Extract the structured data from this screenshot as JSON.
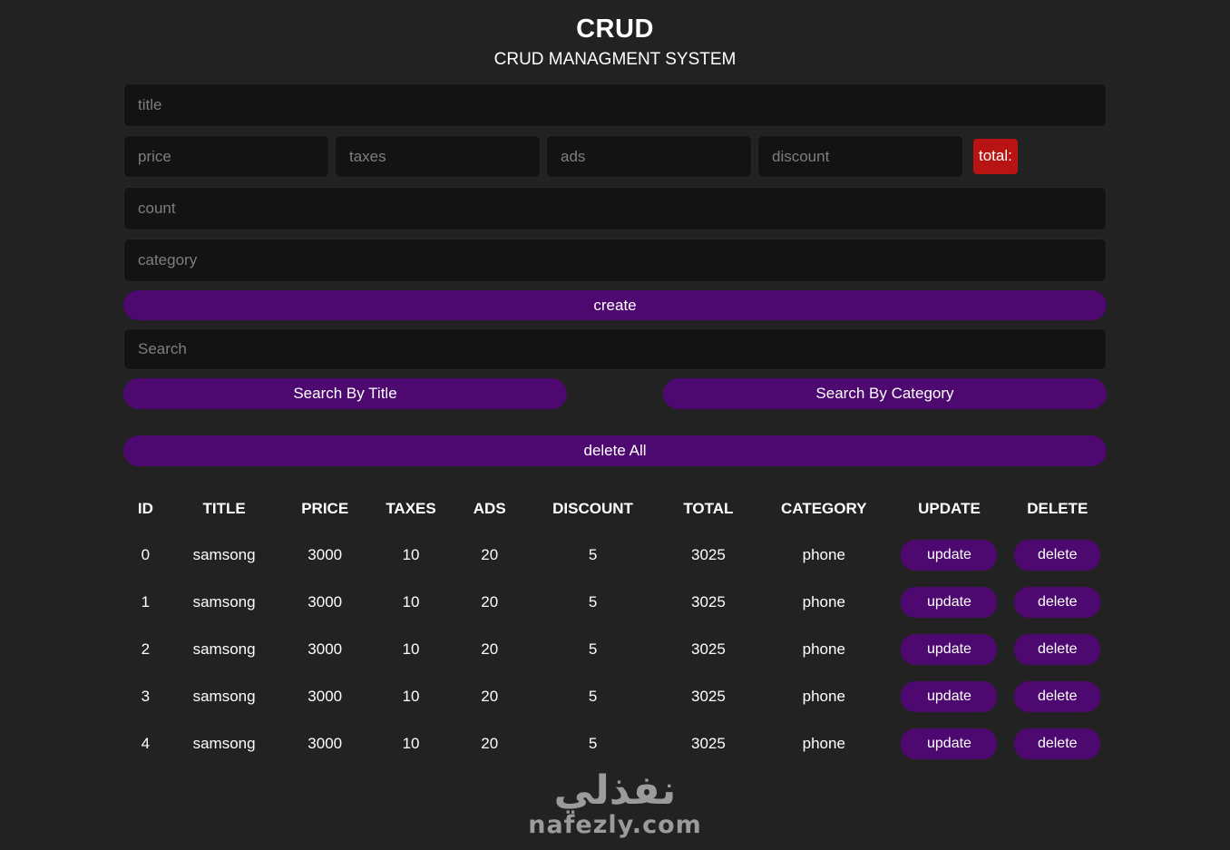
{
  "header": {
    "title": "CRUD",
    "subtitle": "CRUD MANAGMENT SYSTEM"
  },
  "form": {
    "title_placeholder": "title",
    "price_placeholder": "price",
    "taxes_placeholder": "taxes",
    "ads_placeholder": "ads",
    "discount_placeholder": "discount",
    "total_label": "total:",
    "count_placeholder": "count",
    "category_placeholder": "category",
    "create_label": "create"
  },
  "search": {
    "placeholder": "Search",
    "by_title_label": "Search By Title",
    "by_category_label": "Search By Category"
  },
  "delete_all_label": "delete All",
  "table": {
    "headers": [
      "ID",
      "TITLE",
      "PRICE",
      "TAXES",
      "ADS",
      "DISCOUNT",
      "TOTAL",
      "CATEGORY",
      "UPDATE",
      "DELETE"
    ],
    "update_label": "update",
    "delete_label": "delete",
    "rows": [
      {
        "id": "0",
        "title": "samsong",
        "price": "3000",
        "taxes": "10",
        "ads": "20",
        "discount": "5",
        "total": "3025",
        "category": "phone"
      },
      {
        "id": "1",
        "title": "samsong",
        "price": "3000",
        "taxes": "10",
        "ads": "20",
        "discount": "5",
        "total": "3025",
        "category": "phone"
      },
      {
        "id": "2",
        "title": "samsong",
        "price": "3000",
        "taxes": "10",
        "ads": "20",
        "discount": "5",
        "total": "3025",
        "category": "phone"
      },
      {
        "id": "3",
        "title": "samsong",
        "price": "3000",
        "taxes": "10",
        "ads": "20",
        "discount": "5",
        "total": "3025",
        "category": "phone"
      },
      {
        "id": "4",
        "title": "samsong",
        "price": "3000",
        "taxes": "10",
        "ads": "20",
        "discount": "5",
        "total": "3025",
        "category": "phone"
      }
    ]
  },
  "watermark": {
    "arabic": "نفذلي",
    "domain": "nafezly.com"
  },
  "colors": {
    "background": "#222222",
    "accent_purple": "#4e0970",
    "danger_red": "#b81414",
    "input_bg": "#131313"
  }
}
